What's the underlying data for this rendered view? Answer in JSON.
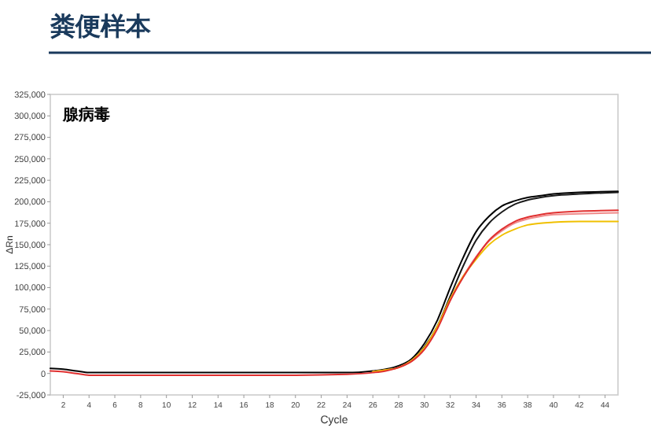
{
  "chart_data": {
    "type": "line",
    "title": "粪便样本",
    "subtitle": "腺病毒",
    "xlabel": "Cycle",
    "ylabel": "ΔRn",
    "x": [
      1,
      2,
      3,
      4,
      5,
      6,
      10,
      15,
      20,
      24,
      26,
      27,
      28,
      29,
      30,
      31,
      32,
      33,
      34,
      35,
      36,
      37,
      38,
      39,
      40,
      42,
      45
    ],
    "series": [
      {
        "color": "#000000",
        "values": [
          6000,
          5000,
          3000,
          1000,
          1000,
          1000,
          1000,
          1000,
          1000,
          1000,
          3000,
          5000,
          9000,
          17000,
          35000,
          62000,
          100000,
          135000,
          165000,
          183000,
          195000,
          201000,
          205000,
          207000,
          209000,
          211000,
          212000
        ]
      },
      {
        "color": "#1a1a1a",
        "values": [
          null,
          null,
          null,
          null,
          null,
          null,
          null,
          null,
          null,
          null,
          2000,
          4000,
          8000,
          15000,
          31000,
          55000,
          90000,
          125000,
          155000,
          175000,
          188000,
          197000,
          202000,
          205000,
          207000,
          209000,
          211000
        ]
      },
      {
        "color": "#e03030",
        "values": [
          3000,
          2000,
          0,
          -2000,
          -2000,
          -2000,
          -2000,
          -2000,
          -2000,
          -1000,
          1000,
          3000,
          7000,
          14000,
          28000,
          52000,
          85000,
          112000,
          135000,
          155000,
          168000,
          177000,
          182000,
          185000,
          187000,
          189000,
          190000
        ]
      },
      {
        "color": "#f08a8a",
        "values": [
          null,
          null,
          null,
          null,
          null,
          null,
          null,
          null,
          null,
          null,
          2000,
          4000,
          7000,
          15000,
          29000,
          53000,
          86000,
          113000,
          136000,
          154000,
          166000,
          175000,
          180000,
          183000,
          185000,
          186000,
          187000
        ]
      },
      {
        "color": "#f0c000",
        "values": [
          null,
          null,
          null,
          null,
          null,
          null,
          null,
          null,
          null,
          null,
          2000,
          4000,
          7000,
          15000,
          30000,
          55000,
          87000,
          113000,
          133000,
          150000,
          161000,
          168000,
          173000,
          175000,
          176000,
          177000,
          177000
        ]
      }
    ],
    "xlim": [
      1,
      45
    ],
    "xticks": [
      2,
      4,
      6,
      8,
      10,
      12,
      14,
      16,
      18,
      20,
      22,
      24,
      26,
      28,
      30,
      32,
      34,
      36,
      38,
      40,
      42,
      44
    ],
    "ylim": [
      -25000,
      325000
    ],
    "yticks": [
      {
        "value": -25000,
        "label": "-25,000"
      },
      {
        "value": 0,
        "label": "0"
      },
      {
        "value": 25000,
        "label": "25,000"
      },
      {
        "value": 50000,
        "label": "50,000"
      },
      {
        "value": 75000,
        "label": "75,000"
      },
      {
        "value": 100000,
        "label": "100,000"
      },
      {
        "value": 125000,
        "label": "125,000"
      },
      {
        "value": 150000,
        "label": "150,000"
      },
      {
        "value": 175000,
        "label": "175,000"
      },
      {
        "value": 200000,
        "label": "200,000"
      },
      {
        "value": 225000,
        "label": "225,000"
      },
      {
        "value": 250000,
        "label": "250,000"
      },
      {
        "value": 275000,
        "label": "275,000"
      },
      {
        "value": 300000,
        "label": "300,000"
      },
      {
        "value": 325000,
        "label": "325,000"
      }
    ],
    "grid": false,
    "marker": "none",
    "line_style": "solid"
  }
}
